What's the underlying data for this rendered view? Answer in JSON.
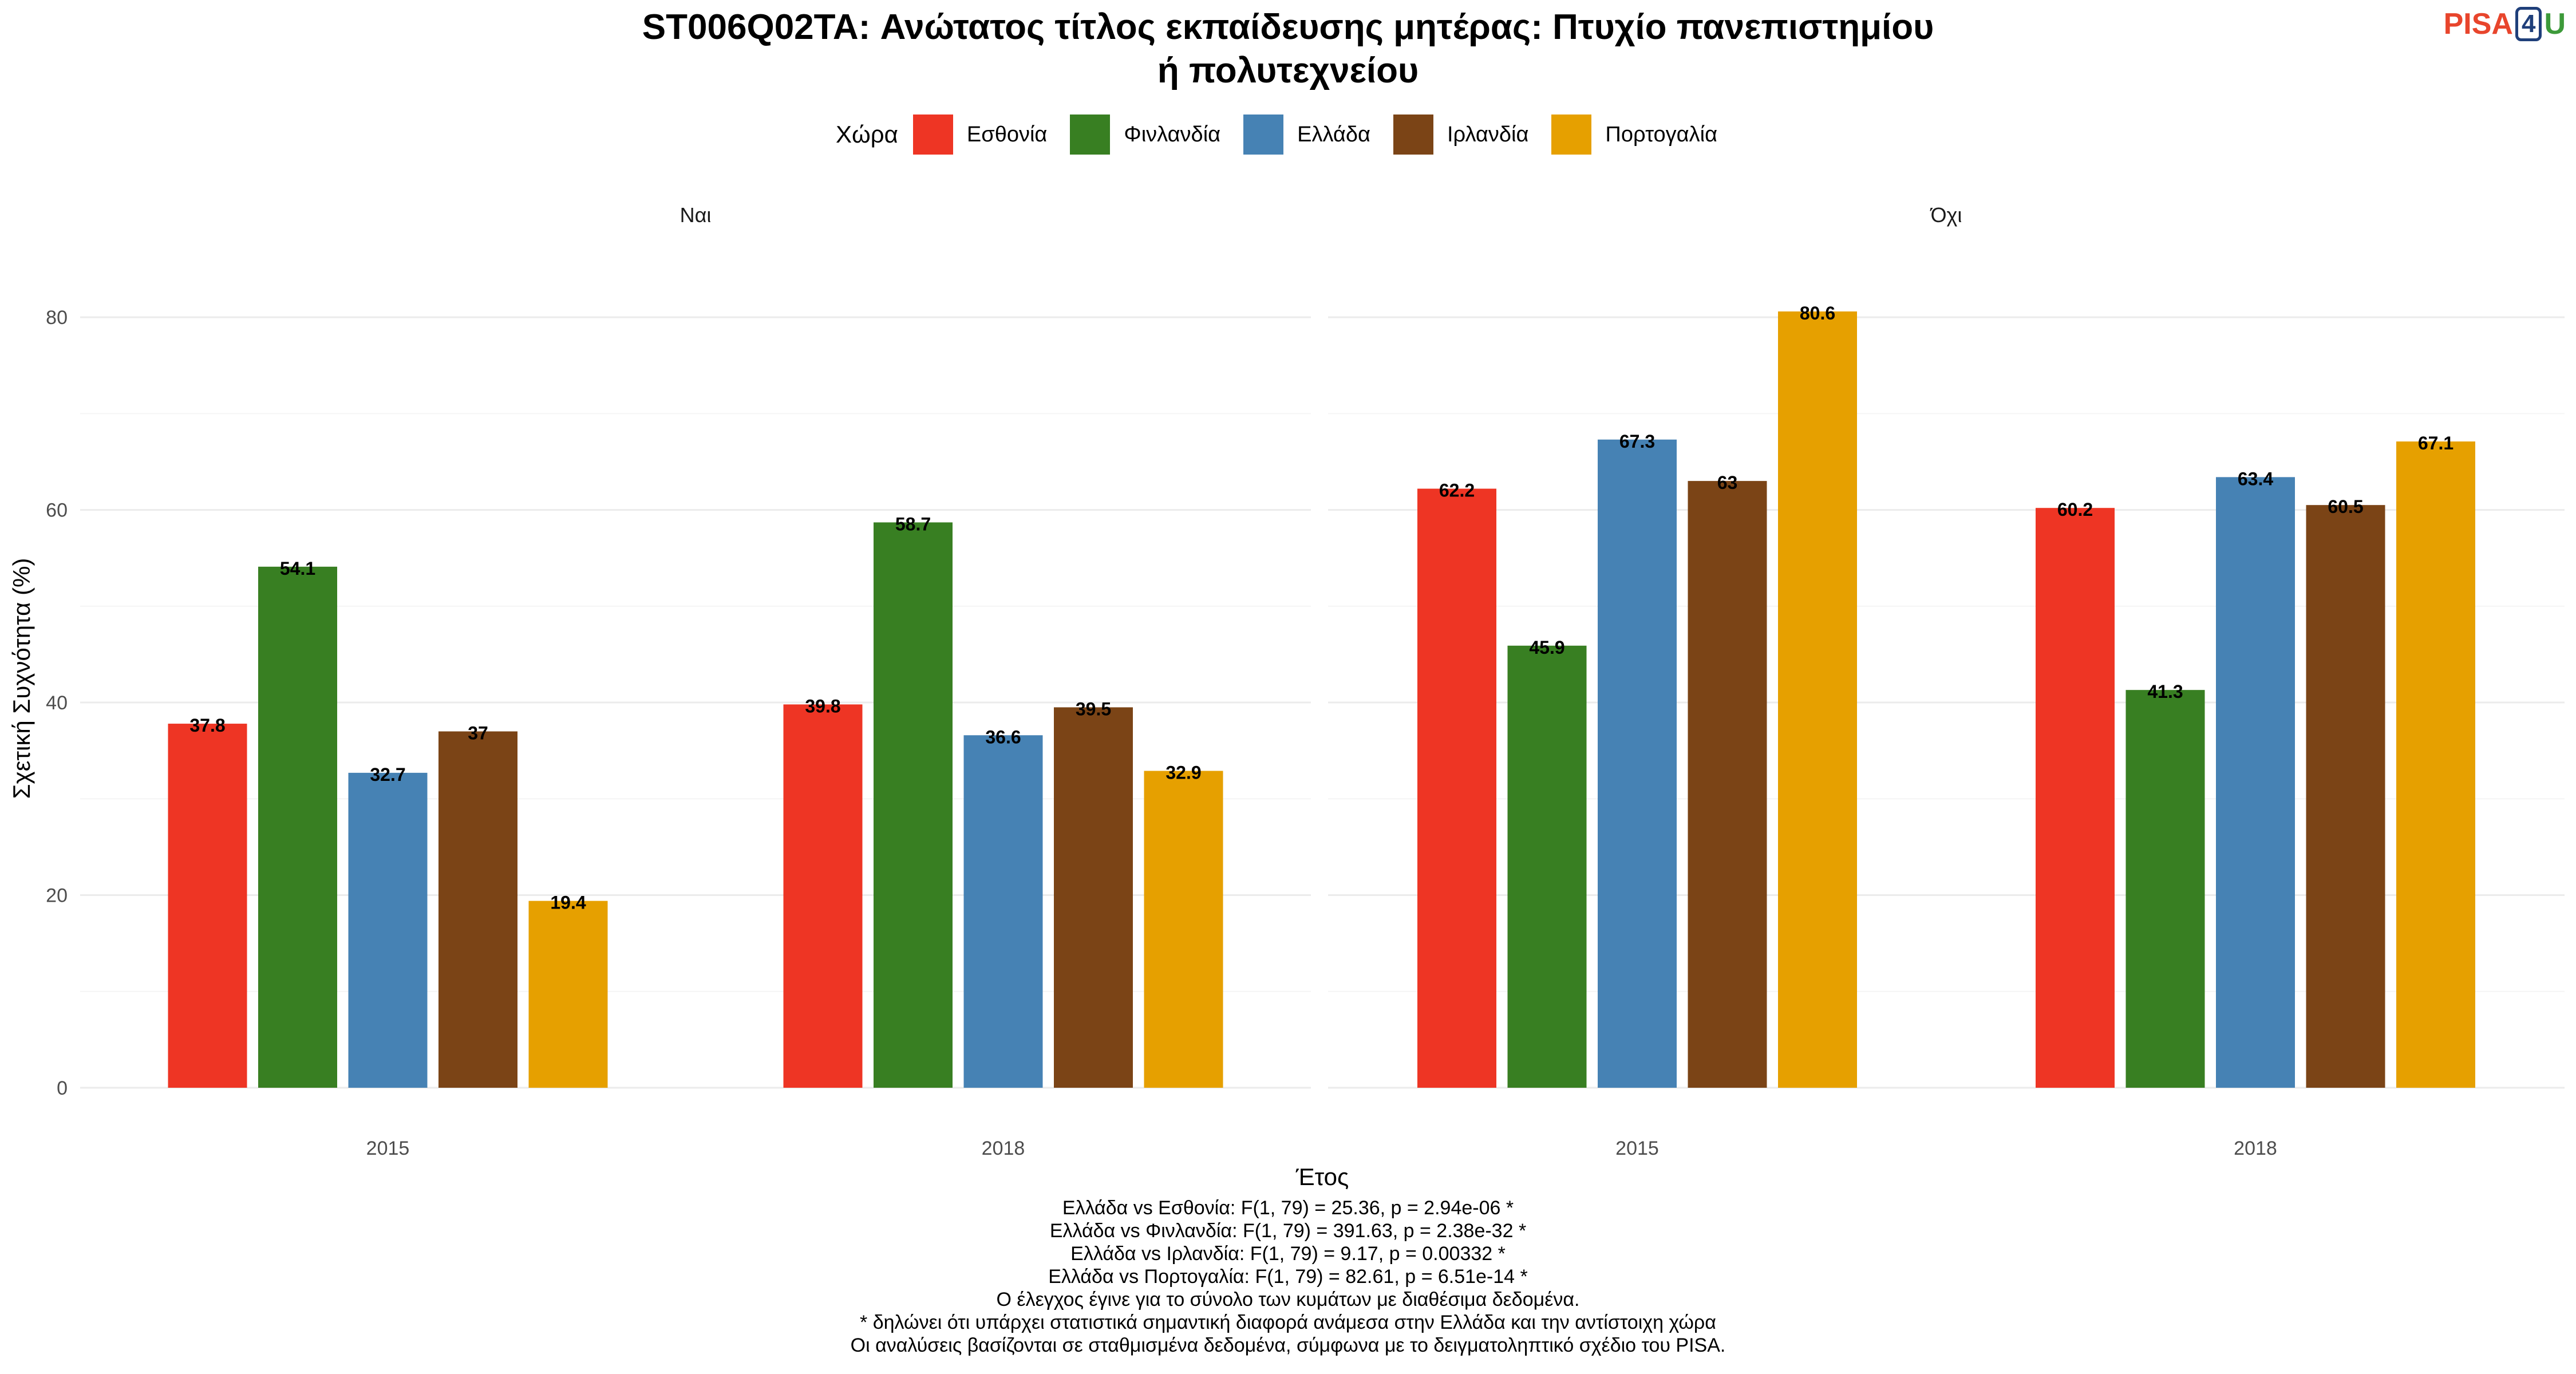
{
  "title_lines": [
    "ST006Q02TA: Ανώτατος τίτλος εκπαίδευσης μητέρας: Πτυχίο πανεπιστημίου",
    "ή πολυτεχνείου"
  ],
  "logo": {
    "part1": "PISA",
    "part2": "4",
    "part3": "U"
  },
  "legend": {
    "title": "Χώρα",
    "items": [
      {
        "label": "Εσθονία",
        "color": "#ee3524"
      },
      {
        "label": "Φινλανδία",
        "color": "#387f22"
      },
      {
        "label": "Ελλάδα",
        "color": "#4682b4"
      },
      {
        "label": "Ιρλανδία",
        "color": "#7b4416"
      },
      {
        "label": "Πορτογαλία",
        "color": "#e6a000"
      }
    ]
  },
  "chart_data": {
    "type": "bar",
    "xlabel": "Έτος",
    "ylabel": "Σχετική Συχνότητα (%)",
    "ylim": [
      0,
      85
    ],
    "yticks": [
      0,
      20,
      40,
      60,
      80
    ],
    "grid": true,
    "legend_position": "top",
    "categories": [
      "2015",
      "2018"
    ],
    "facets": [
      {
        "label": "Ναι",
        "series": [
          {
            "name": "Εσθονία",
            "values": [
              37.8,
              39.8
            ]
          },
          {
            "name": "Φινλανδία",
            "values": [
              54.1,
              58.7
            ]
          },
          {
            "name": "Ελλάδα",
            "values": [
              32.7,
              36.6
            ]
          },
          {
            "name": "Ιρλανδία",
            "values": [
              37,
              39.5
            ]
          },
          {
            "name": "Πορτογαλία",
            "values": [
              19.4,
              32.9
            ]
          }
        ]
      },
      {
        "label": "Όχι",
        "series": [
          {
            "name": "Εσθονία",
            "values": [
              62.2,
              60.2
            ]
          },
          {
            "name": "Φινλανδία",
            "values": [
              45.9,
              41.3
            ]
          },
          {
            "name": "Ελλάδα",
            "values": [
              67.3,
              63.4
            ]
          },
          {
            "name": "Ιρλανδία",
            "values": [
              63,
              60.5
            ]
          },
          {
            "name": "Πορτογαλία",
            "values": [
              80.6,
              67.1
            ]
          }
        ]
      }
    ]
  },
  "notes": [
    "Ελλάδα vs Εσθονία: F(1, 79) = 25.36, p = 2.94e-06 *",
    "Ελλάδα vs Φινλανδία: F(1, 79) = 391.63, p = 2.38e-32 *",
    "Ελλάδα vs Ιρλανδία: F(1, 79) = 9.17, p = 0.00332 *",
    "Ελλάδα vs Πορτογαλία: F(1, 79) = 82.61, p = 6.51e-14 *",
    "Ο έλεγχος έγινε για το σύνολο των κυμάτων με διαθέσιμα δεδομένα.",
    "* δηλώνει ότι υπάρχει στατιστικά σημαντική διαφορά ανάμεσα στην Ελλάδα και την αντίστοιχη χώρα",
    "Οι αναλύσεις βασίζονται σε σταθμισμένα δεδομένα, σύμφωνα με το δειγματοληπτικό σχέδιο του PISA."
  ]
}
